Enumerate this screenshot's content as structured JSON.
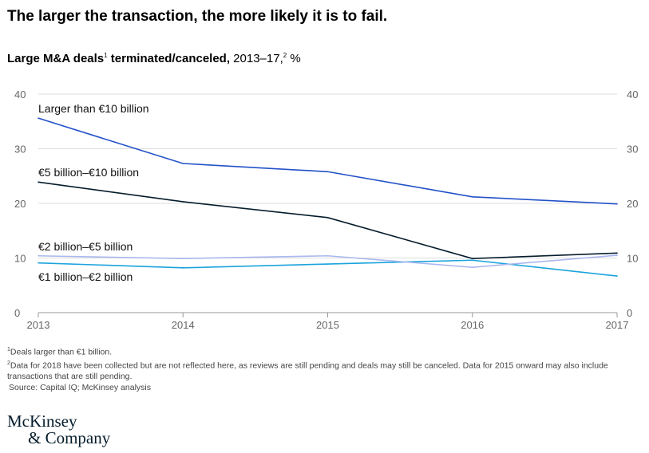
{
  "title": "The larger the transaction, the more likely it is to fail.",
  "subtitle": {
    "bold": "Large M&A deals",
    "sup1": "1",
    "bold2": " terminated/canceled,",
    "rest": " 2013–17,",
    "sup2": "2",
    "unit": " %"
  },
  "chart_data": {
    "type": "line",
    "title": "Large M&A deals terminated/canceled, 2013–17, %",
    "x": [
      "2013",
      "2014",
      "2015",
      "2016",
      "2017"
    ],
    "ylim": [
      0,
      40
    ],
    "yticks": [
      "0",
      "10",
      "20",
      "30",
      "40"
    ],
    "grid": true,
    "series": [
      {
        "name": "Larger than €10 billion",
        "color": "#2251c8",
        "values": [
          35.6,
          27.3,
          25.8,
          21.2,
          19.9
        ]
      },
      {
        "name": "€5 billion–€10 billion",
        "color": "#051c2c",
        "values": [
          23.9,
          20.3,
          17.4,
          9.9,
          10.9
        ]
      },
      {
        "name": "€2 billion–€5 billion",
        "color": "#a9b8ee",
        "values": [
          10.4,
          9.9,
          10.4,
          8.3,
          10.5
        ]
      },
      {
        "name": "€1 billion–€2 billion",
        "color": "#1ba3dc",
        "values": [
          9.1,
          8.2,
          8.9,
          9.6,
          6.7
        ]
      }
    ]
  },
  "footnotes": {
    "n1_sup": "1",
    "n1": "Deals larger than €1 billion.",
    "n2_sup": "2",
    "n2": "Data for 2018 have been collected but are not reflected here, as reviews are still pending and deals may still be canceled. Data for 2015 onward may also include transactions that are still pending.",
    "source": "Source: Capital IQ; McKinsey analysis"
  },
  "logo": {
    "line1": "McKinsey",
    "line2": "& Company"
  }
}
